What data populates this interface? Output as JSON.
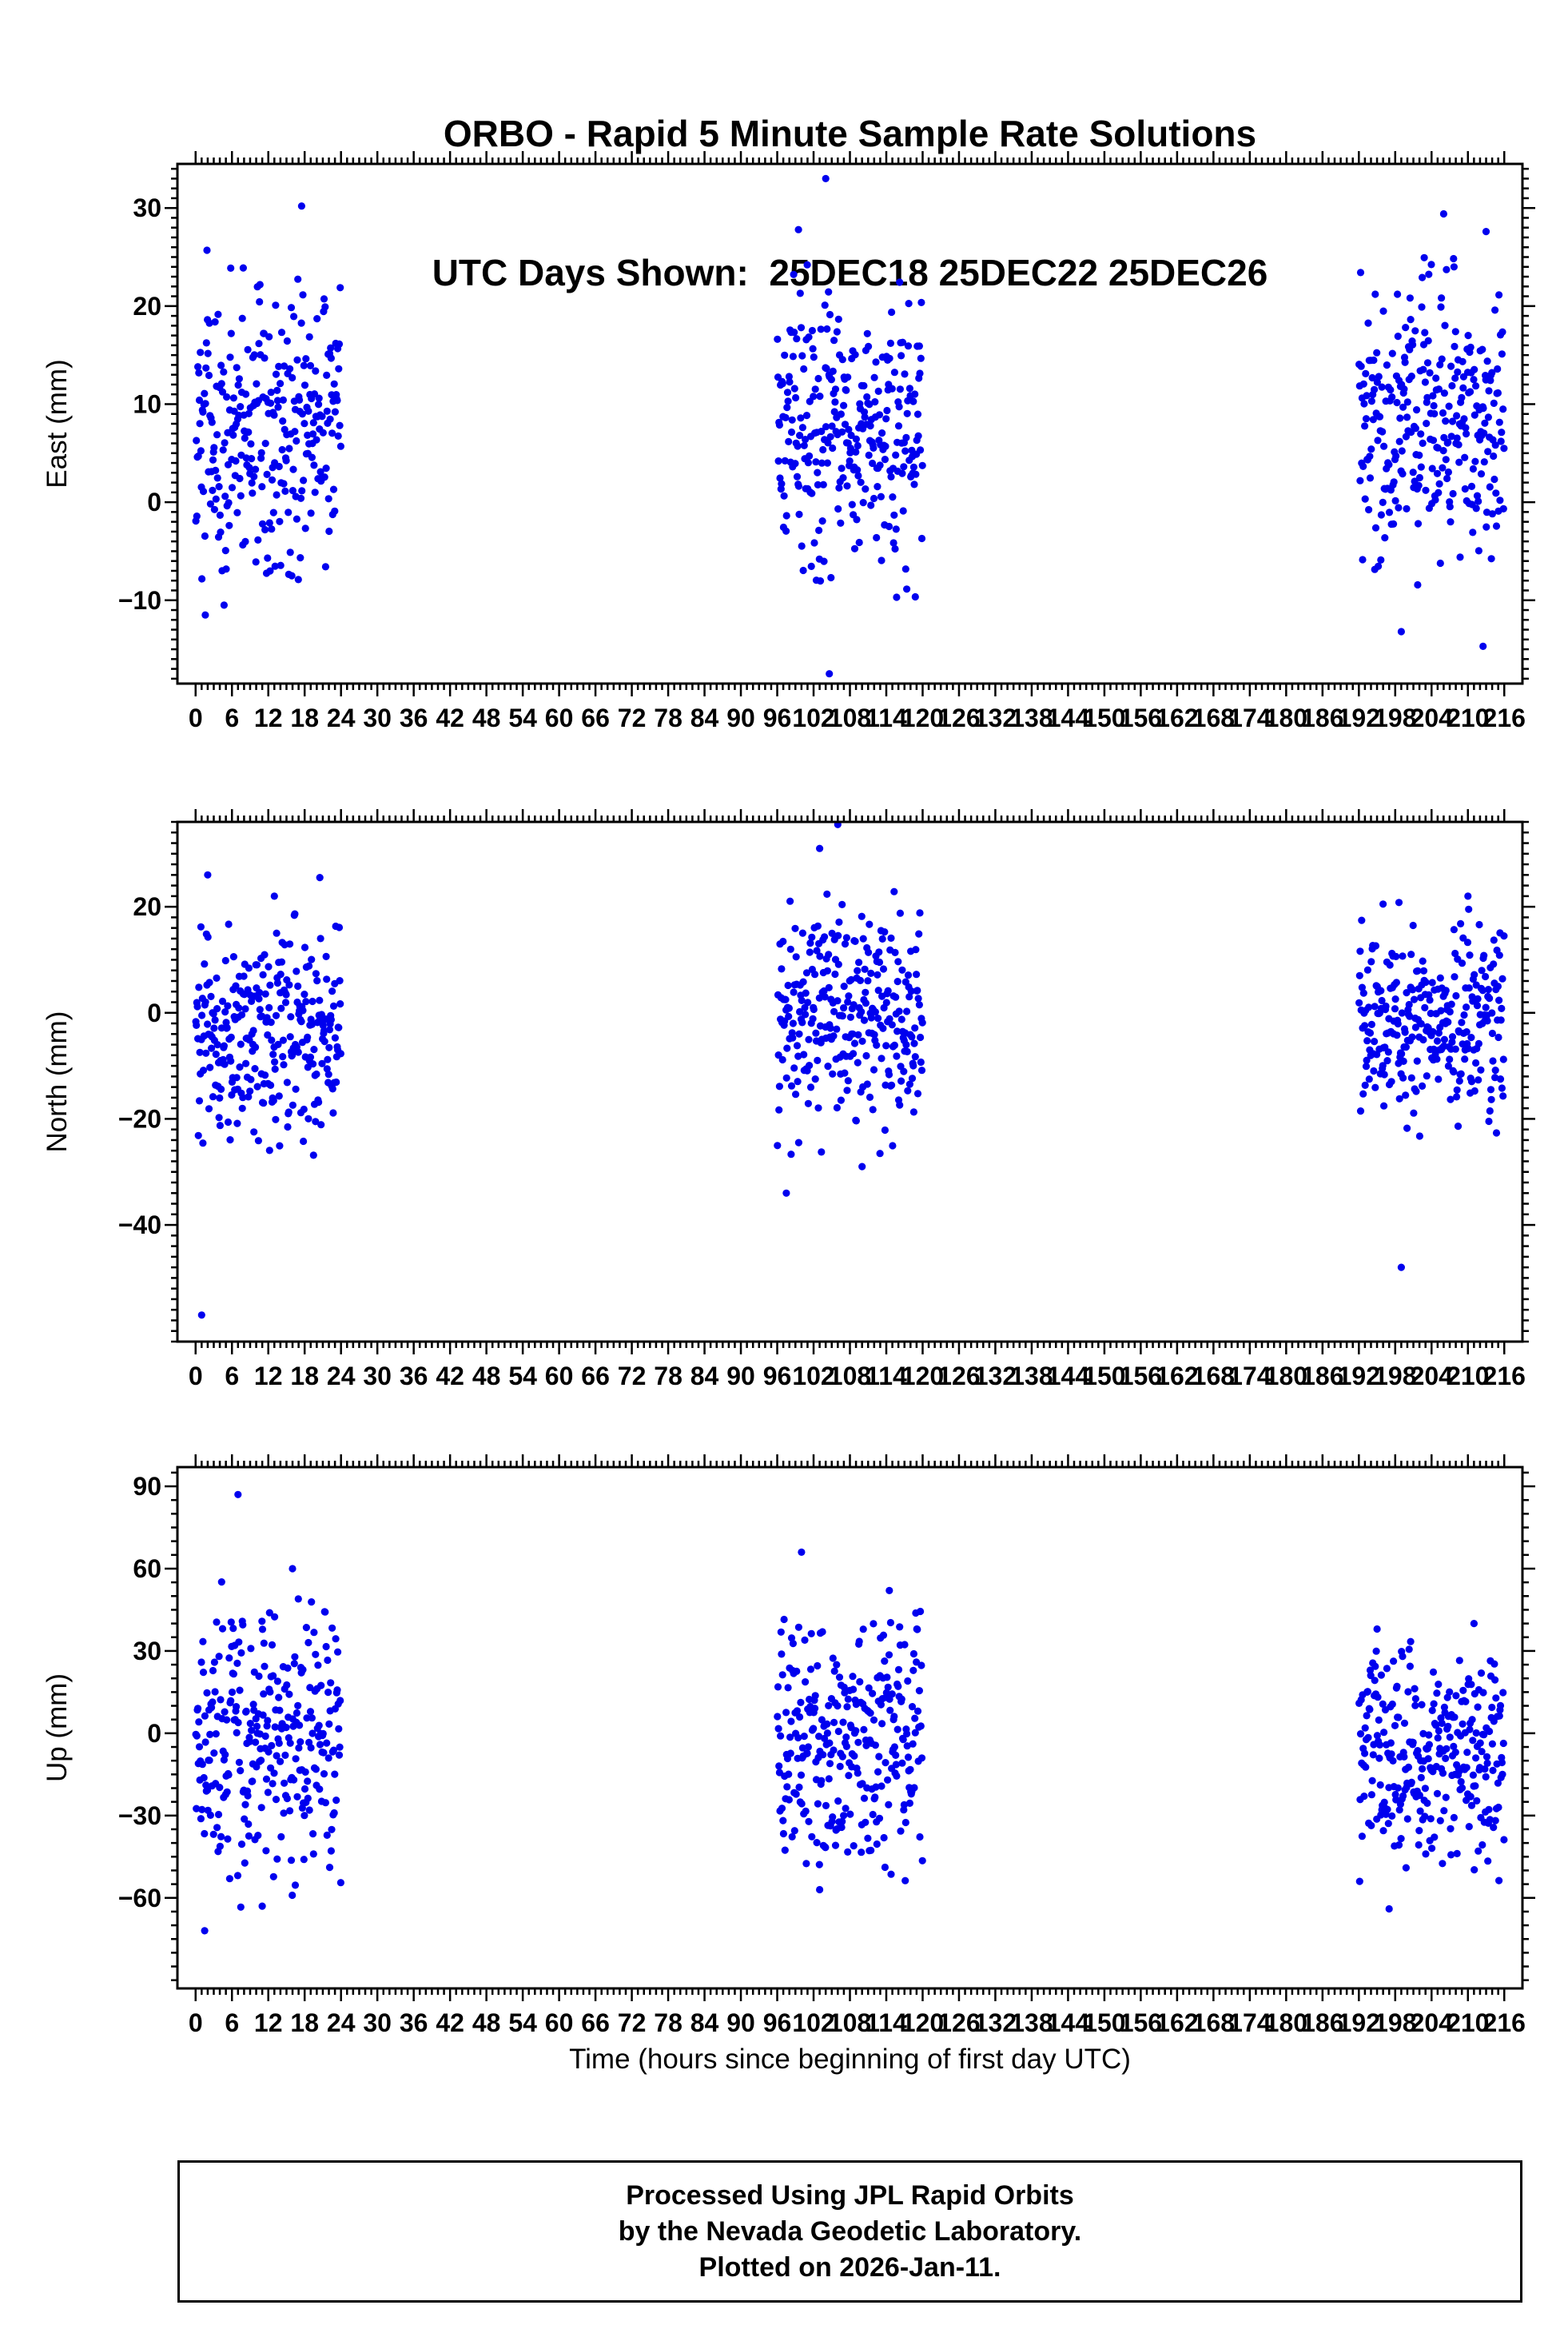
{
  "title": {
    "line1": "ORBO - Rapid 5 Minute Sample Rate Solutions",
    "line2": "UTC Days Shown:  25DEC18 25DEC22 25DEC26"
  },
  "xlabel": "Time (hours since beginning of first day UTC)",
  "footer": {
    "line1": "Processed Using JPL Rapid Orbits",
    "line2": "by the Nevada Geodetic Laboratory.",
    "line3": "Plotted on 2026-Jan-11."
  },
  "style": {
    "dot_color": "#0000ee",
    "axis_color": "#000000",
    "background": "#ffffff"
  },
  "chart_data": [
    {
      "type": "scatter",
      "panel": "east",
      "ylabel": "East (mm)",
      "ylim": [
        -18.5,
        34.5
      ],
      "yticks": [
        -10,
        0,
        10,
        20,
        30
      ],
      "y_minor_step": 1,
      "xlim": [
        -3,
        219
      ],
      "xticks": {
        "start": 0,
        "end": 216,
        "major_step": 6,
        "minor_step": 1
      },
      "sample_rate_minutes": 5,
      "days": [
        "25DEC18",
        "25DEC22",
        "25DEC26"
      ],
      "clusters": [
        {
          "day": "25DEC18",
          "x0": 0,
          "x1": 24,
          "n": 288,
          "mean": 7.5,
          "std": 7.5,
          "clip_min": -11,
          "clip_max": 26
        },
        {
          "day": "25DEC22",
          "x0": 96,
          "x1": 120,
          "n": 288,
          "mean": 7.0,
          "std": 7.0,
          "clip_min": -10,
          "clip_max": 25
        },
        {
          "day": "25DEC26",
          "x0": 192,
          "x1": 216,
          "n": 288,
          "mean": 8.0,
          "std": 7.0,
          "clip_min": -8.5,
          "clip_max": 25
        }
      ],
      "outliers": [
        [
          17.5,
          30.2
        ],
        [
          1.6,
          -11.5
        ],
        [
          104,
          33
        ],
        [
          99.5,
          27.8
        ],
        [
          104.6,
          -17.5
        ],
        [
          206,
          29.4
        ],
        [
          213,
          27.6
        ],
        [
          199,
          -13.2
        ],
        [
          212.5,
          -14.7
        ]
      ]
    },
    {
      "type": "scatter",
      "panel": "north",
      "ylabel": "North (mm)",
      "ylim": [
        -62,
        36
      ],
      "yticks": [
        -40,
        -20,
        0,
        20
      ],
      "y_minor_step": 2,
      "xlim": [
        -3,
        219
      ],
      "xticks": {
        "start": 0,
        "end": 216,
        "major_step": 6,
        "minor_step": 1
      },
      "sample_rate_minutes": 5,
      "days": [
        "25DEC18",
        "25DEC22",
        "25DEC26"
      ],
      "clusters": [
        {
          "day": "25DEC18",
          "x0": 0,
          "x1": 24,
          "n": 288,
          "mean": -4.0,
          "std": 10.0,
          "clip_min": -27,
          "clip_max": 20
        },
        {
          "day": "25DEC22",
          "x0": 96,
          "x1": 120,
          "n": 288,
          "mean": 0.0,
          "std": 11.0,
          "clip_min": -28,
          "clip_max": 26
        },
        {
          "day": "25DEC26",
          "x0": 192,
          "x1": 216,
          "n": 288,
          "mean": -2.5,
          "std": 9.0,
          "clip_min": -26,
          "clip_max": 21
        }
      ],
      "outliers": [
        [
          2,
          26
        ],
        [
          20.5,
          25.5
        ],
        [
          13,
          22
        ],
        [
          1,
          -57
        ],
        [
          106,
          35.5
        ],
        [
          103,
          31
        ],
        [
          97.5,
          -34
        ],
        [
          110,
          -29
        ],
        [
          199,
          -48
        ],
        [
          210,
          22
        ],
        [
          196,
          20.5
        ]
      ]
    },
    {
      "type": "scatter",
      "panel": "up",
      "ylabel": "Up (mm)",
      "ylim": [
        -93,
        97
      ],
      "yticks": [
        -60,
        -30,
        0,
        30,
        60,
        90
      ],
      "y_minor_step": 5,
      "xlim": [
        -3,
        219
      ],
      "xticks": {
        "start": 0,
        "end": 216,
        "major_step": 6,
        "minor_step": 1
      },
      "sample_rate_minutes": 5,
      "days": [
        "25DEC18",
        "25DEC22",
        "25DEC26"
      ],
      "clusters": [
        {
          "day": "25DEC18",
          "x0": 0,
          "x1": 24,
          "n": 288,
          "mean": -3.0,
          "std": 26.0,
          "clip_min": -66,
          "clip_max": 57
        },
        {
          "day": "25DEC22",
          "x0": 96,
          "x1": 120,
          "n": 288,
          "mean": -2.0,
          "std": 22.0,
          "clip_min": -54,
          "clip_max": 50
        },
        {
          "day": "25DEC26",
          "x0": 192,
          "x1": 216,
          "n": 288,
          "mean": -8.0,
          "std": 21.0,
          "clip_min": -58,
          "clip_max": 38
        }
      ],
      "outliers": [
        [
          7,
          87
        ],
        [
          1.5,
          -72
        ],
        [
          16,
          60
        ],
        [
          11,
          -63
        ],
        [
          100,
          66
        ],
        [
          114.5,
          52
        ],
        [
          103,
          -57
        ],
        [
          197,
          -64
        ],
        [
          211,
          40
        ],
        [
          195,
          38
        ]
      ]
    }
  ]
}
